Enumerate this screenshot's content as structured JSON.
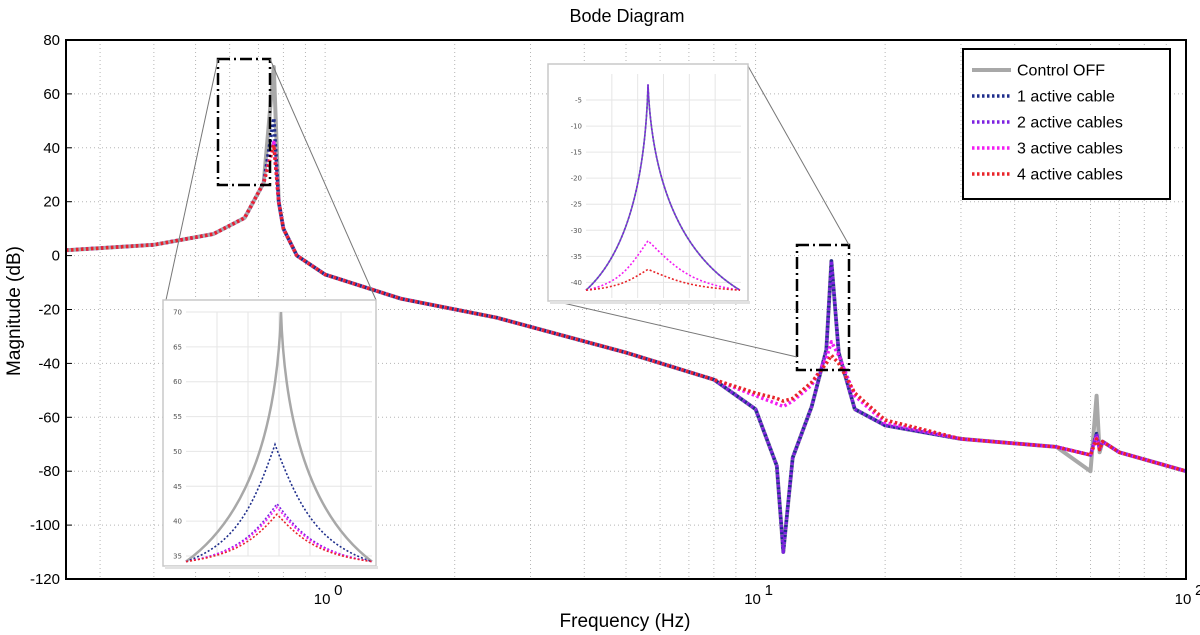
{
  "chart_data": {
    "type": "line",
    "title": "Bode Diagram",
    "xlabel": "Frequency (Hz)",
    "ylabel": "Magnitude (dB)",
    "xscale": "log",
    "xlim": [
      0.25,
      100
    ],
    "ylim": [
      -120,
      80
    ],
    "x_ticks": [
      {
        "value": 1,
        "label": "10",
        "exp": "0"
      },
      {
        "value": 10,
        "label": "10",
        "exp": "1"
      },
      {
        "value": 100,
        "label": "10",
        "exp": "2"
      }
    ],
    "y_ticks": [
      80,
      60,
      40,
      20,
      0,
      -20,
      -40,
      -60,
      -80,
      -100,
      -120
    ],
    "y_tick_labels": [
      "80",
      "60",
      "40",
      "20",
      "0",
      "-20",
      "-40",
      "-60",
      "-80",
      "-100",
      "-120"
    ],
    "grid": "dotted-major-minor",
    "legend_position": "top-right",
    "series": [
      {
        "name": "Control OFF",
        "color": "#a8a8a8",
        "style": "solid",
        "x": [
          0.25,
          0.4,
          0.55,
          0.65,
          0.72,
          0.76,
          0.78,
          0.8,
          0.86,
          1.0,
          1.5,
          2.5,
          5,
          8,
          10,
          11.2,
          11.6,
          12.2,
          13.5,
          14.6,
          15,
          15.6,
          17,
          20,
          30,
          50,
          60,
          62,
          63,
          64,
          70,
          100
        ],
        "y": [
          2,
          4,
          8,
          14,
          27,
          70,
          20,
          10,
          0,
          -7,
          -16,
          -23,
          -36,
          -46,
          -57,
          -78,
          -110,
          -75,
          -56,
          -35,
          -2,
          -36,
          -57,
          -63,
          -68,
          -71,
          -80,
          -52,
          -73,
          -69,
          -73,
          -80
        ]
      },
      {
        "name": "1 active cable",
        "color": "#1f2e8c",
        "style": "dotted",
        "x": [
          0.25,
          0.4,
          0.55,
          0.65,
          0.72,
          0.76,
          0.78,
          0.8,
          0.86,
          1.0,
          1.5,
          2.5,
          5,
          8,
          10,
          11.2,
          11.6,
          12.2,
          13.5,
          14.6,
          15,
          15.6,
          17,
          20,
          30,
          50,
          60,
          62,
          63,
          64,
          70,
          100
        ],
        "y": [
          2,
          4,
          8,
          14,
          27,
          51,
          20,
          10,
          0,
          -7,
          -16,
          -23,
          -36,
          -46,
          -57,
          -78,
          -110,
          -75,
          -56,
          -35,
          -2,
          -36,
          -57,
          -63,
          -68,
          -71,
          -74,
          -66,
          -72,
          -69,
          -73,
          -80
        ]
      },
      {
        "name": "2 active cables",
        "color": "#7d22e0",
        "style": "dotted",
        "x": [
          0.25,
          0.4,
          0.55,
          0.65,
          0.72,
          0.76,
          0.78,
          0.8,
          0.86,
          1.0,
          1.5,
          2.5,
          5,
          8,
          10,
          11.2,
          11.6,
          12.2,
          13.5,
          14.6,
          15,
          15.6,
          17,
          20,
          30,
          50,
          60,
          62,
          63,
          64,
          70,
          100
        ],
        "y": [
          2,
          4,
          8,
          14,
          27,
          42,
          20,
          10,
          0,
          -7,
          -16,
          -23,
          -36,
          -46,
          -57,
          -78,
          -110,
          -75,
          -56,
          -35,
          -2,
          -36,
          -57,
          -63,
          -68,
          -71,
          -74,
          -66,
          -72,
          -69,
          -73,
          -80
        ]
      },
      {
        "name": "3 active cables",
        "color": "#f21df2",
        "style": "dotted",
        "x": [
          0.25,
          0.4,
          0.55,
          0.65,
          0.72,
          0.76,
          0.78,
          0.8,
          0.86,
          1.0,
          1.5,
          2.5,
          5,
          8,
          10,
          11.2,
          11.6,
          12.2,
          13.5,
          14.6,
          15,
          15.6,
          17,
          20,
          30,
          50,
          60,
          62,
          63,
          64,
          70,
          100
        ],
        "y": [
          2,
          4,
          8,
          14,
          27,
          42,
          20,
          10,
          0,
          -7,
          -16,
          -23,
          -36,
          -46,
          -52,
          -55,
          -56,
          -54,
          -48,
          -38,
          -32,
          -37,
          -52,
          -62,
          -68,
          -71,
          -74,
          -67,
          -72,
          -69,
          -73,
          -80
        ]
      },
      {
        "name": "4 active cables",
        "color": "#e8252a",
        "style": "dotted",
        "x": [
          0.25,
          0.4,
          0.55,
          0.65,
          0.72,
          0.76,
          0.78,
          0.8,
          0.86,
          1.0,
          1.5,
          2.5,
          5,
          8,
          10,
          11.2,
          11.6,
          12.2,
          13.5,
          14.6,
          15,
          15.6,
          17,
          20,
          30,
          50,
          60,
          62,
          63,
          64,
          70,
          100
        ],
        "y": [
          2,
          4,
          8,
          14,
          27,
          41,
          20,
          10,
          0,
          -7,
          -16,
          -23,
          -36,
          -46,
          -51,
          -53,
          -54,
          -53,
          -47,
          -40,
          -37,
          -40,
          -51,
          -61,
          -68,
          -71,
          -74,
          -68,
          -72,
          -69,
          -73,
          -80
        ]
      }
    ],
    "insets": [
      {
        "name": "first-mode-zoom",
        "y_ticks": [
          "70",
          "65",
          "60",
          "55",
          "50",
          "45",
          "40",
          "35"
        ],
        "curves": [
          {
            "series": "Control OFF",
            "peak": 70
          },
          {
            "series": "1 active cable",
            "peak": 51
          },
          {
            "series": "2 active cables",
            "peak": 42.5
          },
          {
            "series": "3 active cables",
            "peak": 42
          },
          {
            "series": "4 active cables",
            "peak": 41
          }
        ]
      },
      {
        "name": "second-mode-zoom",
        "y_ticks": [
          "-5",
          "-10",
          "-15",
          "-20",
          "-25",
          "-30",
          "-35",
          "-40"
        ],
        "curves": [
          {
            "series": "Control OFF",
            "peak": -2
          },
          {
            "series": "1 active cable",
            "peak": -2
          },
          {
            "series": "2 active cables",
            "peak": -2
          },
          {
            "series": "3 active cables",
            "peak": -32
          },
          {
            "series": "4 active cables",
            "peak": -37.5
          }
        ]
      }
    ]
  }
}
